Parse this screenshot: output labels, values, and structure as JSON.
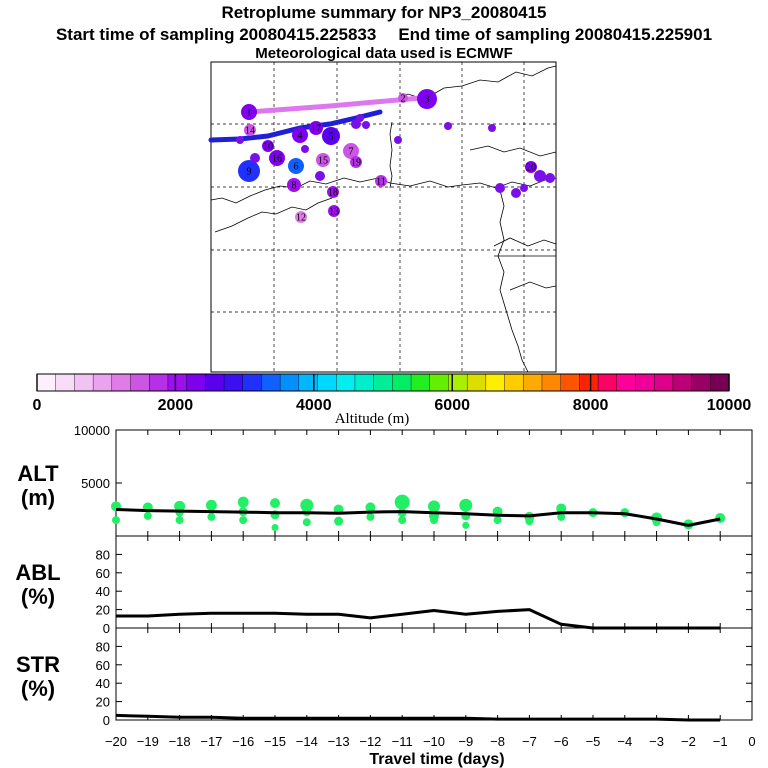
{
  "title": {
    "line1": "Retroplume summary for NP3_20080415",
    "start": "Start time of sampling 20080415.225833",
    "end": "End time of sampling 20080415.225901",
    "met": "Meteorological data used is ECMWF"
  },
  "colors": {
    "ink": "#000000",
    "marker_green": "#22ee66",
    "map_track_main": "#1f1fd8",
    "map_track_upper": "#dd77ee"
  },
  "colorbar": {
    "title": "Altitude (m)",
    "ticks": [
      "0",
      "2000",
      "4000",
      "6000",
      "8000",
      "10000"
    ],
    "min": 0,
    "max": 10000,
    "colors": [
      "#fdf0fd",
      "#f8dcf8",
      "#f2c2f2",
      "#eaa3ee",
      "#e07ce8",
      "#cc55e6",
      "#b530e6",
      "#9d10ee",
      "#7f00ee",
      "#5a00ee",
      "#3a10f0",
      "#2030ff",
      "#1060ff",
      "#0090ff",
      "#00b8ff",
      "#00d8ff",
      "#00eeee",
      "#00eecc",
      "#00ee99",
      "#00ee66",
      "#22ee22",
      "#66ee00",
      "#aaee00",
      "#dddd00",
      "#ffee00",
      "#ffcc00",
      "#ffaa00",
      "#ff8800",
      "#ff5500",
      "#ff2200",
      "#ff0066",
      "#ff0099",
      "#ee0099",
      "#dd0088",
      "#bb0077",
      "#990066",
      "#770055"
    ]
  },
  "map": {
    "markers": [
      {
        "label": "1",
        "alt": 2200
      },
      {
        "label": "2",
        "alt": 1400
      },
      {
        "label": "3",
        "alt": 2400
      },
      {
        "label": "4",
        "alt": 2300
      },
      {
        "label": "5",
        "alt": 2500
      },
      {
        "label": "6",
        "alt": 3400
      },
      {
        "label": "7",
        "alt": 1400
      },
      {
        "label": "8",
        "alt": 2000
      },
      {
        "label": "9",
        "alt": 3200
      },
      {
        "label": "10",
        "alt": 2200
      },
      {
        "label": "11",
        "alt": 1800
      },
      {
        "label": "12",
        "alt": 1300
      },
      {
        "label": "13",
        "alt": 2000
      },
      {
        "label": "14",
        "alt": 1600
      },
      {
        "label": "15",
        "alt": 1400
      },
      {
        "label": "16",
        "alt": 2400
      },
      {
        "label": "17",
        "alt": 2300
      },
      {
        "label": "18",
        "alt": 2000
      },
      {
        "label": "19",
        "alt": 1800
      },
      {
        "label": "20",
        "alt": 2300
      }
    ]
  },
  "chart_data": [
    {
      "type": "line",
      "panel": "ALT",
      "label_line1": "ALT",
      "label_line2": "(m)",
      "ylim": [
        0,
        10000
      ],
      "y_ticks": [
        "10000",
        "5000"
      ],
      "x": [
        -20,
        -19,
        -18,
        -17,
        -16,
        -15,
        -14,
        -13,
        -12,
        -11,
        -10,
        -9,
        -8,
        -7,
        -6,
        -5,
        -4,
        -3,
        -2,
        -1
      ],
      "values": [
        2500,
        2400,
        2350,
        2300,
        2250,
        2200,
        2200,
        2150,
        2250,
        2300,
        2200,
        2100,
        1950,
        1900,
        2200,
        2200,
        2100,
        1600,
        1000,
        1600
      ],
      "scatter": [
        {
          "x": -20,
          "y": 2800,
          "size": 7
        },
        {
          "x": -20,
          "y": 1500,
          "size": 5
        },
        {
          "x": -19,
          "y": 2700,
          "size": 7
        },
        {
          "x": -19,
          "y": 1900,
          "size": 5
        },
        {
          "x": -18,
          "y": 2800,
          "size": 8
        },
        {
          "x": -18,
          "y": 2200,
          "size": 5
        },
        {
          "x": -18,
          "y": 1500,
          "size": 5
        },
        {
          "x": -17,
          "y": 2900,
          "size": 8
        },
        {
          "x": -17,
          "y": 1800,
          "size": 5
        },
        {
          "x": -16,
          "y": 3200,
          "size": 8
        },
        {
          "x": -16,
          "y": 2300,
          "size": 6
        },
        {
          "x": -16,
          "y": 1500,
          "size": 5
        },
        {
          "x": -15,
          "y": 3100,
          "size": 7
        },
        {
          "x": -15,
          "y": 2000,
          "size": 6
        },
        {
          "x": -15,
          "y": 800,
          "size": 4
        },
        {
          "x": -14,
          "y": 2900,
          "size": 10
        },
        {
          "x": -14,
          "y": 2300,
          "size": 6
        },
        {
          "x": -14,
          "y": 1300,
          "size": 5
        },
        {
          "x": -13,
          "y": 2500,
          "size": 7
        },
        {
          "x": -13,
          "y": 1400,
          "size": 6
        },
        {
          "x": -12,
          "y": 2700,
          "size": 7
        },
        {
          "x": -12,
          "y": 1800,
          "size": 5
        },
        {
          "x": -11,
          "y": 3200,
          "size": 12
        },
        {
          "x": -11,
          "y": 2200,
          "size": 6
        },
        {
          "x": -11,
          "y": 1500,
          "size": 5
        },
        {
          "x": -10,
          "y": 2800,
          "size": 9
        },
        {
          "x": -10,
          "y": 1900,
          "size": 7
        },
        {
          "x": -10,
          "y": 1500,
          "size": 5
        },
        {
          "x": -9,
          "y": 2900,
          "size": 10
        },
        {
          "x": -9,
          "y": 1900,
          "size": 6
        },
        {
          "x": -9,
          "y": 1000,
          "size": 4
        },
        {
          "x": -8,
          "y": 2300,
          "size": 7
        },
        {
          "x": -8,
          "y": 1500,
          "size": 5
        },
        {
          "x": -7,
          "y": 1800,
          "size": 7
        },
        {
          "x": -7,
          "y": 1400,
          "size": 5
        },
        {
          "x": -6,
          "y": 2600,
          "size": 7
        },
        {
          "x": -6,
          "y": 1800,
          "size": 5
        },
        {
          "x": -5,
          "y": 2200,
          "size": 6
        },
        {
          "x": -4,
          "y": 2200,
          "size": 6
        },
        {
          "x": -3,
          "y": 1700,
          "size": 8
        },
        {
          "x": -3,
          "y": 1300,
          "size": 5
        },
        {
          "x": -2,
          "y": 1100,
          "size": 7
        },
        {
          "x": -1,
          "y": 1700,
          "size": 7
        }
      ]
    },
    {
      "type": "line",
      "panel": "ABL",
      "label_line1": "ABL",
      "label_line2": "(%)",
      "ylim": [
        0,
        100
      ],
      "y_ticks": [
        "80",
        "60",
        "40",
        "20",
        "0"
      ],
      "x": [
        -20,
        -19,
        -18,
        -17,
        -16,
        -15,
        -14,
        -13,
        -12,
        -11,
        -10,
        -9,
        -8,
        -7,
        -6,
        -5,
        -4,
        -3,
        -2,
        -1
      ],
      "values": [
        13,
        13,
        15,
        16,
        16,
        16,
        15,
        15,
        11,
        15,
        19,
        15,
        18,
        20,
        4,
        0,
        0,
        0,
        0,
        0
      ]
    },
    {
      "type": "line",
      "panel": "STR",
      "label_line1": "STR",
      "label_line2": "(%)",
      "ylim": [
        0,
        100
      ],
      "y_ticks": [
        "80",
        "60",
        "40",
        "20",
        "0"
      ],
      "x": [
        -20,
        -19,
        -18,
        -17,
        -16,
        -15,
        -14,
        -13,
        -12,
        -11,
        -10,
        -9,
        -8,
        -7,
        -6,
        -5,
        -4,
        -3,
        -2,
        -1
      ],
      "values": [
        5,
        4,
        3,
        3,
        2,
        2,
        2,
        2,
        2,
        2,
        2,
        2,
        1,
        1,
        1,
        1,
        1,
        1,
        0,
        0
      ]
    }
  ],
  "x_axis": {
    "label": "Travel time (days)",
    "ticks": [
      "−20",
      "−19",
      "−18",
      "−17",
      "−16",
      "−15",
      "−14",
      "−13",
      "−12",
      "−11",
      "−10",
      "−9",
      "−8",
      "−7",
      "−6",
      "−5",
      "−4",
      "−3",
      "−2",
      "−1",
      "0"
    ]
  }
}
